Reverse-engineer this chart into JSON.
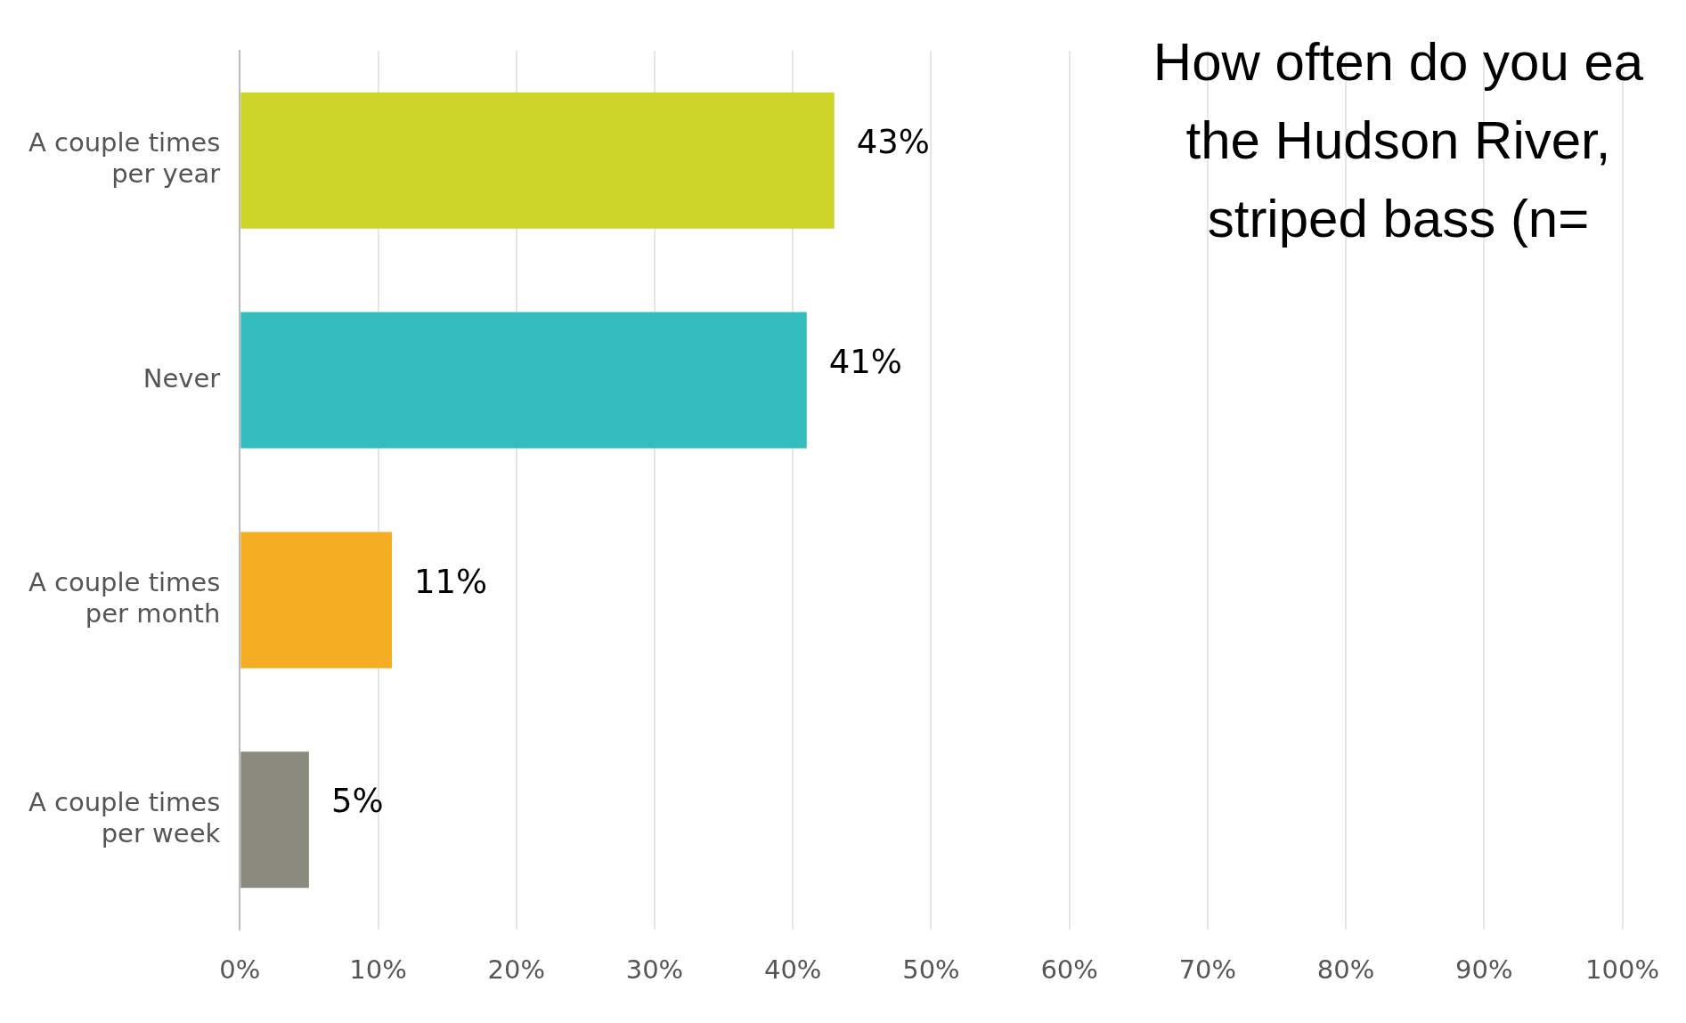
{
  "chart_data": {
    "type": "bar",
    "orientation": "horizontal",
    "title": "How often do you ea\nthe Hudson River,\nstriped bass (n=",
    "categories": [
      "A couple times per year",
      "Never",
      "A couple times per month",
      "A couple times per week"
    ],
    "values": [
      43,
      41,
      11,
      5
    ],
    "colors": [
      "#cdd52a",
      "#33bdbf",
      "#f5ad23",
      "#8a8b7e"
    ],
    "data_labels": true,
    "value_labels": [
      "43%",
      "41%",
      "11%",
      "5%"
    ],
    "xlim": [
      0,
      100
    ],
    "xticks": [
      {
        "value": 0,
        "label": "0%"
      },
      {
        "value": 10,
        "label": "10%"
      },
      {
        "value": 20,
        "label": "20%"
      },
      {
        "value": 30,
        "label": "30%"
      },
      {
        "value": 40,
        "label": "40%"
      },
      {
        "value": 50,
        "label": "50%"
      },
      {
        "value": 60,
        "label": "60%"
      },
      {
        "value": 70,
        "label": "70%"
      },
      {
        "value": 80,
        "label": "80%"
      },
      {
        "value": 90,
        "label": "90%"
      },
      {
        "value": 100,
        "label": "100%"
      }
    ],
    "grid": "x",
    "legend": false
  }
}
